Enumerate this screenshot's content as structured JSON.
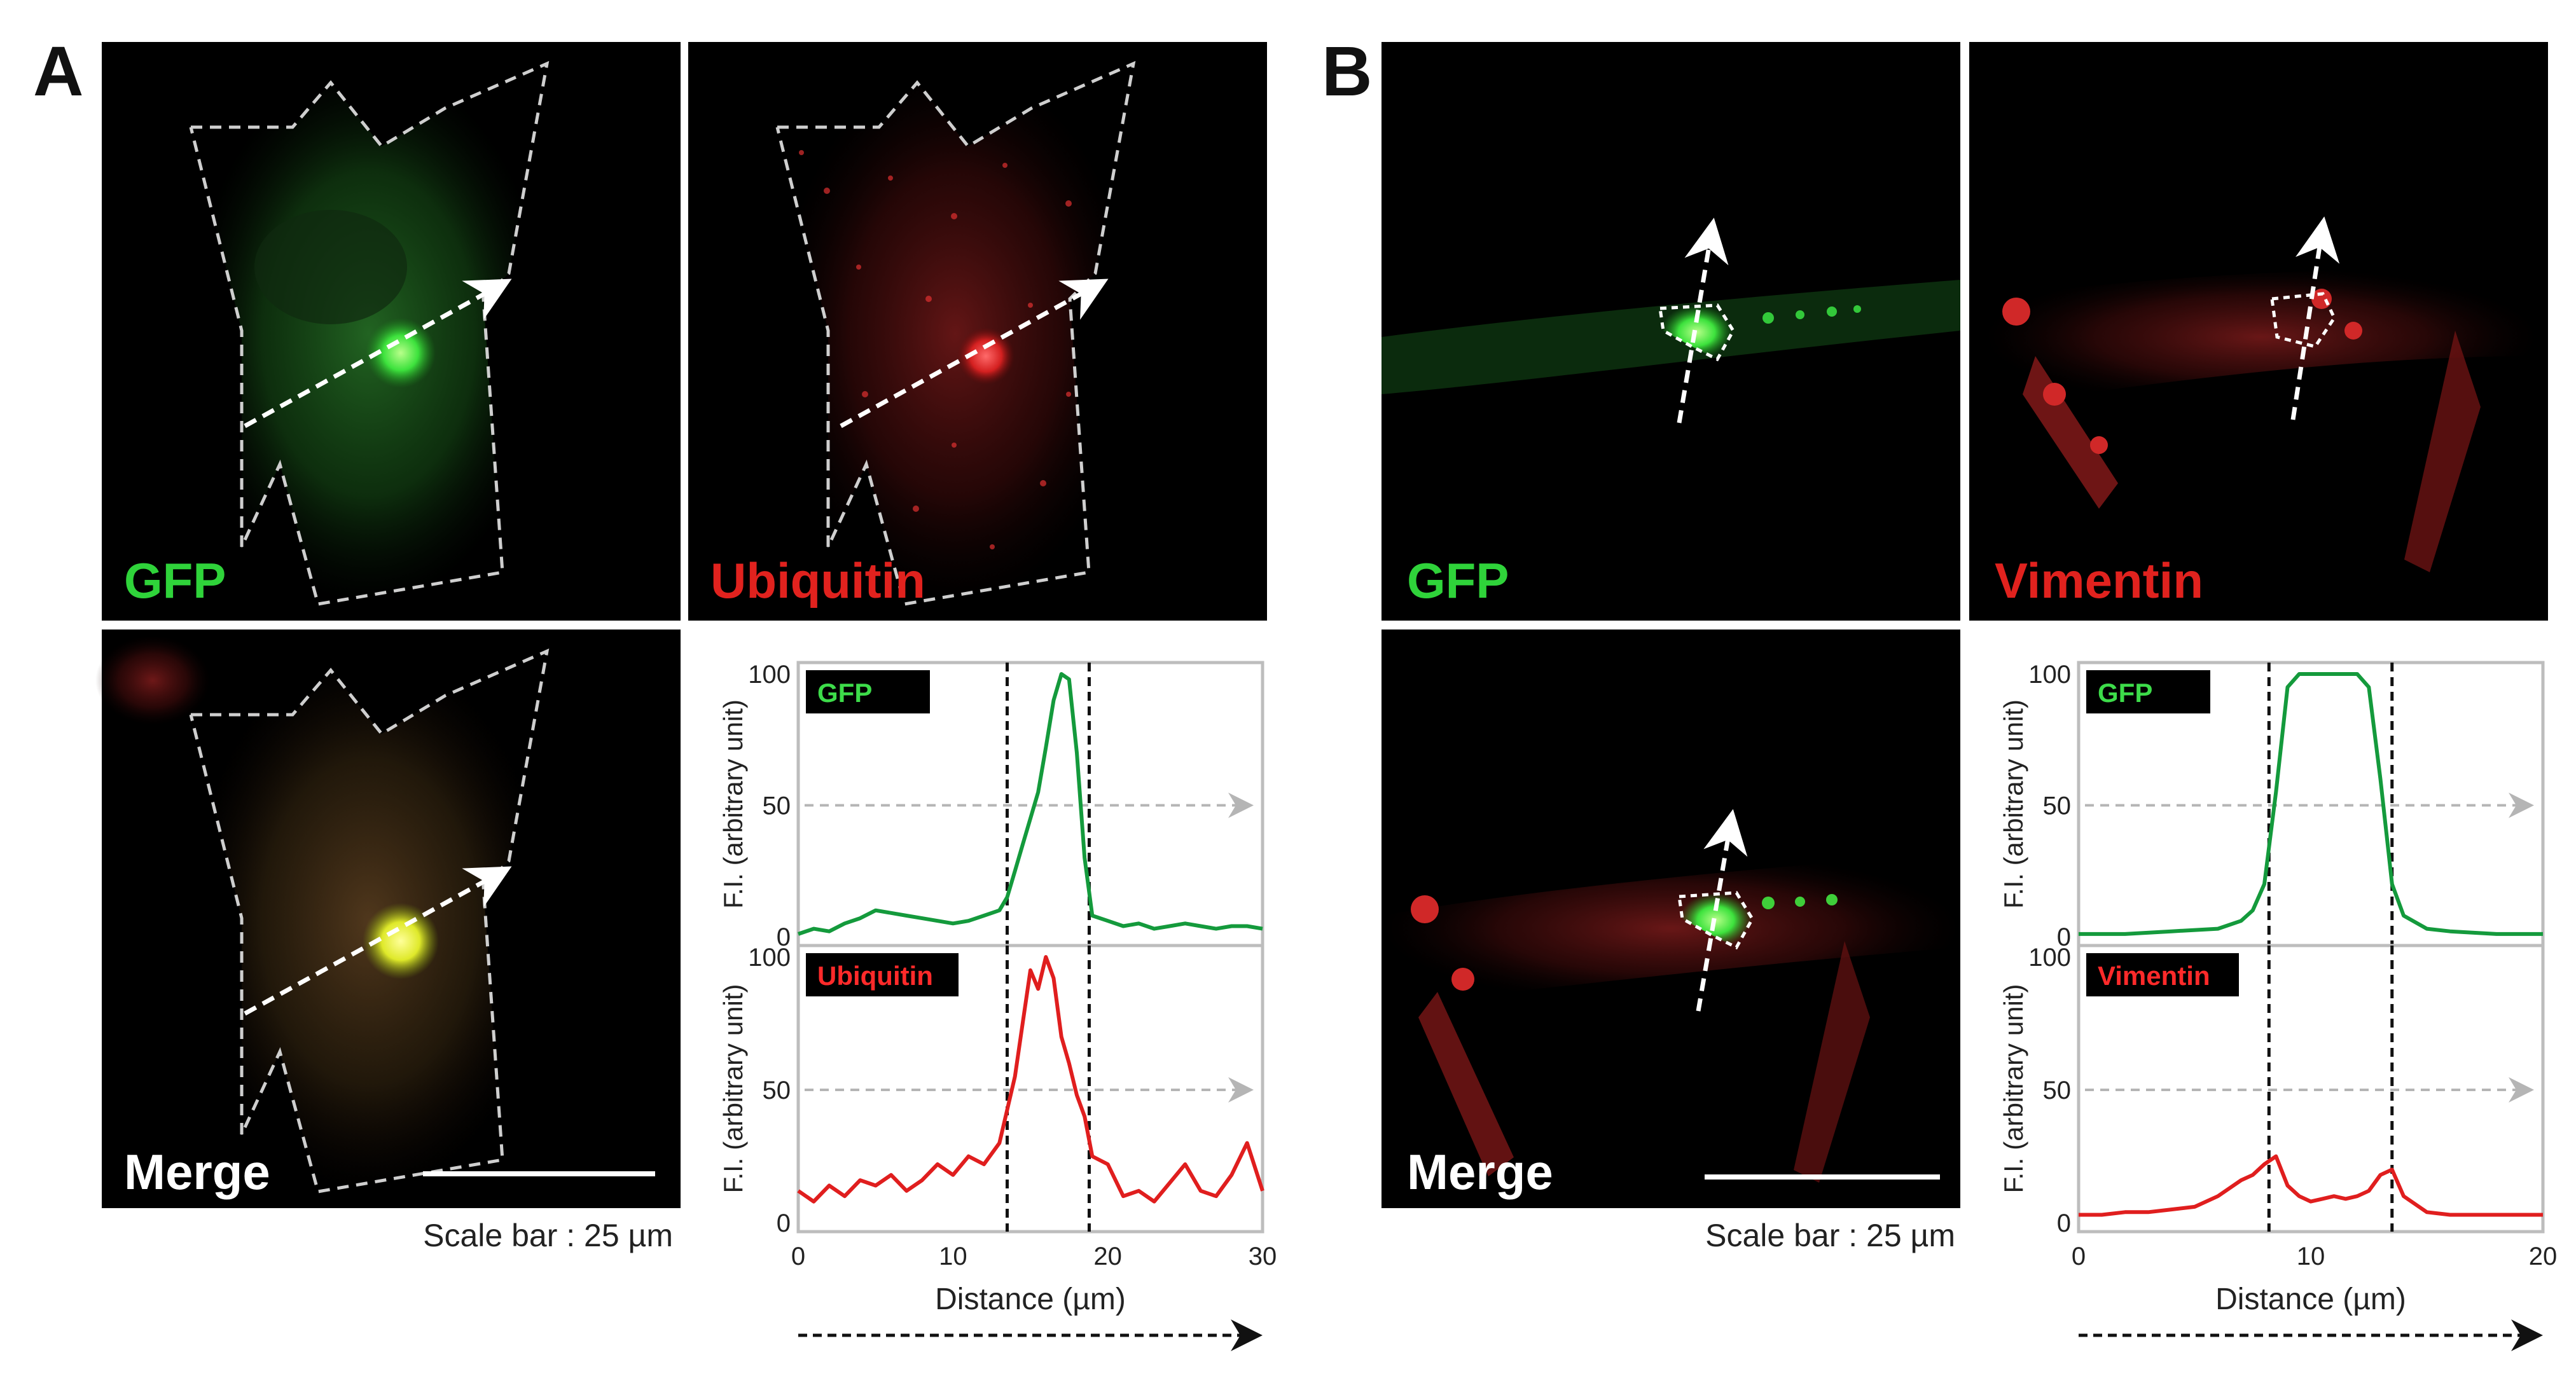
{
  "figure": {
    "panel_a": {
      "letter": "A",
      "images": {
        "gfp_label": "GFP",
        "red_label": "Ubiquitin",
        "merge_label": "Merge"
      },
      "scale_bar": "Scale bar : 25 µm"
    },
    "panel_b": {
      "letter": "B",
      "images": {
        "gfp_label": "GFP",
        "red_label": "Vimentin",
        "merge_label": "Merge"
      },
      "scale_bar": "Scale bar : 25 µm"
    }
  },
  "colors": {
    "gfp_text": "#2fd33a",
    "red_text": "#e1221e",
    "gfp_line": "#149a3c",
    "red_line": "#e01e1e",
    "badge_bg": "#000000",
    "badge_gfp": "#3ddc4a",
    "badge_red": "#ff2a2a"
  },
  "chart_data": [
    {
      "type": "line",
      "id": "A-GFP",
      "badge": "GFP",
      "ylabel": "F.I. (arbitrary unit)",
      "xlabel": "Distance (µm)",
      "xlim": [
        0,
        30
      ],
      "ylim": [
        0,
        100
      ],
      "xticks": [
        "0",
        "10",
        "20",
        "30"
      ],
      "yticks": [
        "0",
        "50",
        "100"
      ],
      "guides": [
        13.5,
        18.8
      ],
      "x": [
        0,
        1,
        2,
        3,
        4,
        5,
        6,
        7,
        8,
        9,
        10,
        11,
        12,
        13,
        13.5,
        14,
        14.5,
        15,
        15.5,
        16,
        16.5,
        17,
        17.5,
        18,
        18.5,
        19,
        20,
        21,
        22,
        23,
        24,
        25,
        26,
        27,
        28,
        29,
        30
      ],
      "values": [
        1,
        3,
        2,
        5,
        7,
        10,
        9,
        8,
        7,
        6,
        5,
        6,
        8,
        10,
        15,
        25,
        35,
        45,
        55,
        72,
        90,
        100,
        98,
        70,
        30,
        8,
        6,
        4,
        5,
        3,
        4,
        5,
        4,
        3,
        4,
        4,
        3
      ]
    },
    {
      "type": "line",
      "id": "A-Ubiquitin",
      "badge": "Ubiquitin",
      "ylabel": "F.I. (arbitrary unit)",
      "xlabel": "Distance (µm)",
      "xlim": [
        0,
        30
      ],
      "ylim": [
        0,
        100
      ],
      "xticks": [
        "0",
        "10",
        "20",
        "30"
      ],
      "yticks": [
        "0",
        "50",
        "100"
      ],
      "guides": [
        13.5,
        18.8
      ],
      "x": [
        0,
        1,
        2,
        3,
        4,
        5,
        6,
        7,
        8,
        9,
        10,
        11,
        12,
        13,
        14,
        14.5,
        15,
        15.5,
        16,
        16.5,
        17,
        17.5,
        18,
        18.5,
        19,
        20,
        21,
        22,
        23,
        24,
        25,
        26,
        27,
        28,
        29,
        30
      ],
      "values": [
        12,
        8,
        14,
        10,
        16,
        14,
        18,
        12,
        16,
        22,
        18,
        25,
        22,
        30,
        55,
        75,
        95,
        88,
        100,
        92,
        70,
        60,
        48,
        40,
        25,
        22,
        10,
        12,
        8,
        15,
        22,
        12,
        10,
        18,
        30,
        12
      ]
    },
    {
      "type": "line",
      "id": "B-GFP",
      "badge": "GFP",
      "ylabel": "F.I. (arbitrary unit)",
      "xlabel": "Distance (µm)",
      "xlim": [
        0,
        20
      ],
      "ylim": [
        0,
        100
      ],
      "xticks": [
        "0",
        "10",
        "20"
      ],
      "yticks": [
        "0",
        "50",
        "100"
      ],
      "guides": [
        8.2,
        13.5
      ],
      "x": [
        0,
        2,
        4,
        6,
        7,
        7.5,
        8,
        8.5,
        9,
        9.5,
        10,
        11,
        12,
        12.5,
        13,
        13.5,
        14,
        15,
        16,
        18,
        20
      ],
      "values": [
        1,
        1,
        2,
        3,
        6,
        10,
        20,
        55,
        95,
        100,
        100,
        100,
        100,
        95,
        60,
        20,
        8,
        3,
        2,
        1,
        1
      ]
    },
    {
      "type": "line",
      "id": "B-Vimentin",
      "badge": "Vimentin",
      "ylabel": "F.I. (arbitrary unit)",
      "xlabel": "Distance (µm)",
      "xlim": [
        0,
        20
      ],
      "ylim": [
        0,
        100
      ],
      "xticks": [
        "0",
        "10",
        "20"
      ],
      "yticks": [
        "0",
        "50",
        "100"
      ],
      "guides": [
        8.2,
        13.5
      ],
      "x": [
        0,
        1,
        2,
        3,
        4,
        5,
        6,
        7,
        7.5,
        8,
        8.5,
        9,
        9.5,
        10,
        10.5,
        11,
        11.5,
        12,
        12.5,
        13,
        13.5,
        14,
        15,
        16,
        17,
        18,
        19,
        20
      ],
      "values": [
        3,
        3,
        4,
        4,
        5,
        6,
        10,
        16,
        18,
        22,
        25,
        14,
        10,
        8,
        9,
        10,
        9,
        10,
        12,
        18,
        20,
        10,
        4,
        3,
        3,
        3,
        3,
        3
      ]
    }
  ]
}
